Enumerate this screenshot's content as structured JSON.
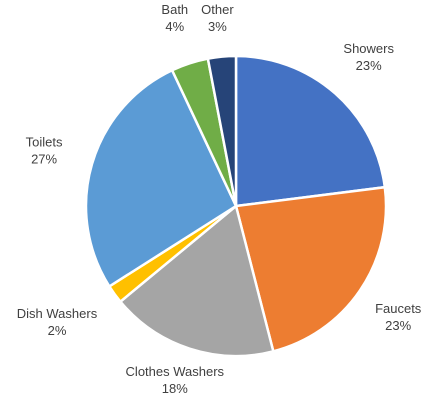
{
  "chart_data": {
    "type": "pie",
    "title": "",
    "slices": [
      {
        "name": "Showers",
        "value": 23,
        "label": "23%",
        "color": "#4472C4"
      },
      {
        "name": "Faucets",
        "value": 23,
        "label": "23%",
        "color": "#ED7D31"
      },
      {
        "name": "Clothes Washers",
        "value": 18,
        "label": "18%",
        "color": "#A5A5A5"
      },
      {
        "name": "Dish Washers",
        "value": 2,
        "label": "2%",
        "color": "#FFC000"
      },
      {
        "name": "Toilets",
        "value": 27,
        "label": "27%",
        "color": "#5B9BD5"
      },
      {
        "name": "Bath",
        "value": 4,
        "label": "4%",
        "color": "#70AD47"
      },
      {
        "name": "Other",
        "value": 3,
        "label": "3%",
        "color": "#264478"
      }
    ],
    "start_angle": "12 o'clock",
    "direction": "clockwise",
    "legend": "none"
  }
}
